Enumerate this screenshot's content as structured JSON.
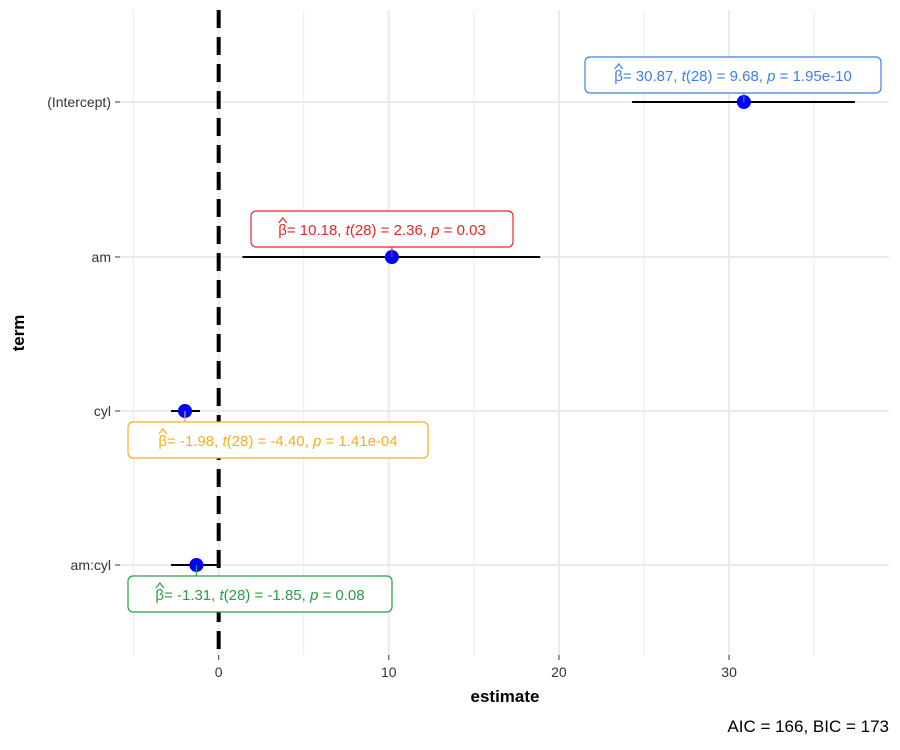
{
  "chart_data": {
    "type": "scatter",
    "subtype": "coefficient-dot-whisker",
    "xlabel": "estimate",
    "ylabel": "term",
    "xlim": [
      -5.8,
      39.4
    ],
    "xticks": [
      0,
      10,
      20,
      30
    ],
    "reference_line": {
      "x": 0,
      "style": "dashed"
    },
    "grid": true,
    "caption": "AIC = 166, BIC = 173",
    "point_color": "#0000FF",
    "terms": [
      {
        "term": "(Intercept)",
        "estimate": 30.87,
        "conf_low": 24.3,
        "conf_high": 37.4,
        "label_color": "#3F7FE8",
        "label": {
          "beta": "β",
          "est": "= 30.87, ",
          "t": "t",
          "df": "(28)",
          "tval": " = 9.68, ",
          "p": "p",
          "pval": " = 1.95e-10"
        }
      },
      {
        "term": "am",
        "estimate": 10.18,
        "conf_low": 1.4,
        "conf_high": 18.9,
        "label_color": "#E02828",
        "label": {
          "beta": "β",
          "est": "= 10.18, ",
          "t": "t",
          "df": "(28)",
          "tval": " = 2.36, ",
          "p": "p",
          "pval": " = 0.03"
        }
      },
      {
        "term": "cyl",
        "estimate": -1.98,
        "conf_low": -2.8,
        "conf_high": -1.1,
        "label_color": "#F2B01E",
        "label": {
          "beta": "β",
          "est": "= -1.98, ",
          "t": "t",
          "df": "(28)",
          "tval": " = -4.40, ",
          "p": "p",
          "pval": " = 1.41e-04"
        }
      },
      {
        "term": "am:cyl",
        "estimate": -1.31,
        "conf_low": -2.8,
        "conf_high": 0.1,
        "label_color": "#2A9C48",
        "label": {
          "beta": "β",
          "est": "= -1.31, ",
          "t": "t",
          "df": "(28)",
          "tval": " = -1.85, ",
          "p": "p",
          "pval": " = 0.08"
        }
      }
    ]
  }
}
